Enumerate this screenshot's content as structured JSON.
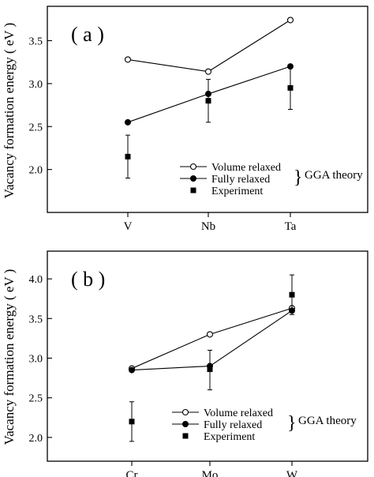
{
  "chart_data": [
    {
      "type": "line",
      "panel_label": "( a )",
      "ylabel": "Vacancy formation energy ( eV )",
      "categories": [
        "V",
        "Nb",
        "Ta"
      ],
      "ylim": [
        1.5,
        3.9
      ],
      "yticks": [
        "2.0",
        "2.5",
        "3.0",
        "3.5"
      ],
      "ytick_values": [
        2.0,
        2.5,
        3.0,
        3.5
      ],
      "series": [
        {
          "name": "Volume relaxed",
          "marker": "open-circle",
          "line": true,
          "values": [
            3.28,
            3.14,
            3.74
          ]
        },
        {
          "name": "Fully relaxed",
          "marker": "filled-circle",
          "line": true,
          "values": [
            2.55,
            2.88,
            3.2
          ]
        },
        {
          "name": "Experiment",
          "marker": "filled-square",
          "line": false,
          "values": [
            2.15,
            2.8,
            2.95
          ],
          "error_low": [
            1.9,
            2.55,
            2.7
          ],
          "error_high": [
            2.4,
            3.05,
            3.2
          ]
        }
      ],
      "legend": {
        "placement": "bottom-right",
        "group_label": "GGA theory"
      }
    },
    {
      "type": "line",
      "panel_label": "( b )",
      "ylabel": "Vacancy formation energy ( eV )",
      "categories": [
        "Cr",
        "Mo",
        "W"
      ],
      "ylim": [
        1.7,
        4.35
      ],
      "yticks": [
        "2.0",
        "2.5",
        "3.0",
        "3.5",
        "4.0"
      ],
      "ytick_values": [
        2.0,
        2.5,
        3.0,
        3.5,
        4.0
      ],
      "series": [
        {
          "name": "Volume relaxed",
          "marker": "open-circle",
          "line": true,
          "values": [
            2.87,
            3.3,
            3.63
          ]
        },
        {
          "name": "Fully relaxed",
          "marker": "filled-circle",
          "line": true,
          "values": [
            2.85,
            2.9,
            3.6
          ]
        },
        {
          "name": "Experiment",
          "marker": "filled-square",
          "line": false,
          "values": [
            2.2,
            2.86,
            3.8
          ],
          "error_low": [
            1.95,
            2.6,
            3.55
          ],
          "error_high": [
            2.45,
            3.1,
            4.05
          ]
        }
      ],
      "legend": {
        "placement": "bottom-right",
        "group_label": "GGA theory"
      }
    }
  ]
}
